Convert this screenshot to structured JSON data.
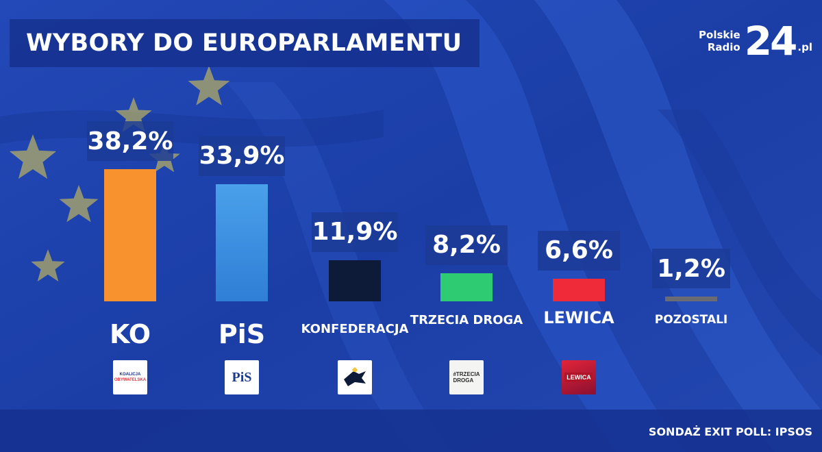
{
  "header": {
    "title": "WYBORY DO EUROPARLAMENTU"
  },
  "brand": {
    "line1": "Polskie",
    "line2": "Radio",
    "number": "24",
    "suffix": ".pl"
  },
  "footer": {
    "source": "SONDAŻ EXIT POLL: IPSOS"
  },
  "chart_data": {
    "type": "bar",
    "title": "WYBORY DO EUROPARLAMENTU",
    "categories": [
      "KO",
      "PiS",
      "KONFEDERACJA",
      "TRZECIA DROGA",
      "LEWICA",
      "POZOSTALI"
    ],
    "values": [
      38.2,
      33.9,
      11.9,
      8.2,
      6.6,
      1.2
    ],
    "value_labels": [
      "38,2%",
      "33,9%",
      "11,9%",
      "8,2%",
      "6,6%",
      "1,2%"
    ],
    "unit": "%",
    "colors": [
      "#f7922e",
      "#3a8fe0",
      "#0d1a38",
      "#2fcb72",
      "#ef2b3a",
      "#6b6b73"
    ],
    "grid": false,
    "legend": "none"
  },
  "logos": [
    {
      "icon": "koalicja-obywatelska-logo",
      "line1": "KOALICJA",
      "line2": "OBYWATELSKA"
    },
    {
      "icon": "pis-logo",
      "text": "PiS"
    },
    {
      "icon": "konfederacja-logo"
    },
    {
      "icon": "trzecia-droga-logo",
      "line1": "#TRZECIA",
      "line2": "DROGA"
    },
    {
      "icon": "lewica-logo",
      "text": "LEWICA"
    }
  ],
  "colors": {
    "background": "#1c3fae",
    "star": "#e8d24a"
  }
}
